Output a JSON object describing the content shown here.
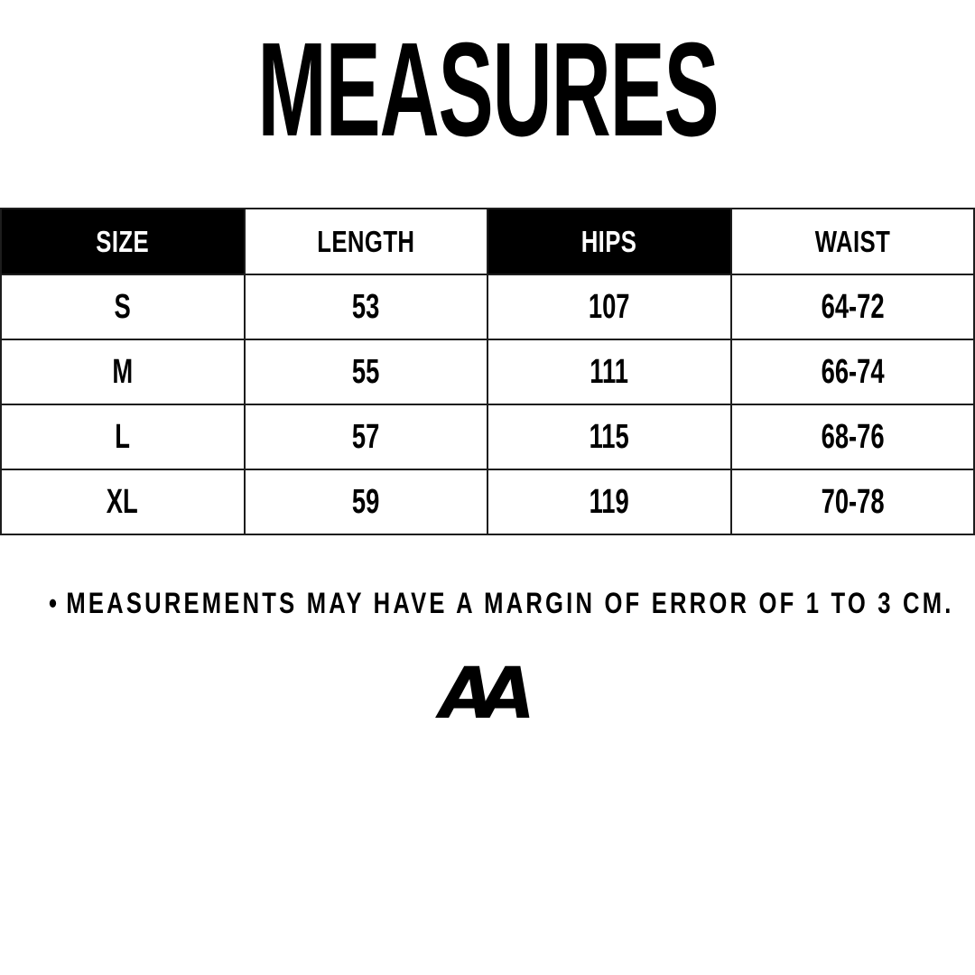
{
  "title": "MEASURES",
  "table": {
    "headers": [
      {
        "label": "SIZE",
        "variant": "dark"
      },
      {
        "label": "LENGTH",
        "variant": "light"
      },
      {
        "label": "HIPS",
        "variant": "dark"
      },
      {
        "label": "WAIST",
        "variant": "light"
      }
    ],
    "rows": [
      {
        "size": "S",
        "length": "53",
        "hips": "107",
        "waist": "64-72"
      },
      {
        "size": "M",
        "length": "55",
        "hips": "111",
        "waist": "66-74"
      },
      {
        "size": "L",
        "length": "57",
        "hips": "115",
        "waist": "68-76"
      },
      {
        "size": "XL",
        "length": "59",
        "hips": "119",
        "waist": "70-78"
      }
    ]
  },
  "note": {
    "bullet": "•",
    "text": "MEASUREMENTS MAY HAVE A MARGIN OF ERROR OF 1 TO 3 CM."
  },
  "logo": {
    "text": "AA"
  },
  "colors": {
    "background": "#ffffff",
    "foreground": "#000000",
    "header_dark_bg": "#000000",
    "header_dark_text": "#ffffff",
    "border": "#1d1d1d"
  }
}
